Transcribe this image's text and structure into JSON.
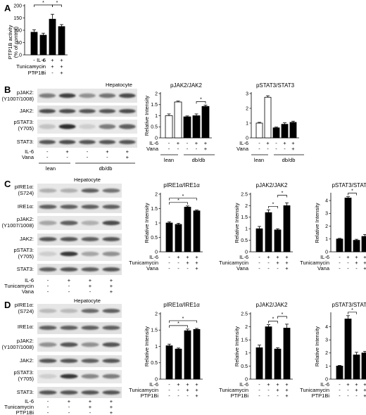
{
  "panels": {
    "A": {
      "letter": "A",
      "ylabel_line1": "PTP1B activity",
      "ylabel_line2": "(% of control)",
      "yticks": [
        "0",
        "50",
        "100",
        "150",
        "200"
      ],
      "rows": [
        {
          "label": "IL-6",
          "signs": [
            "-",
            "+",
            "+",
            "+"
          ]
        },
        {
          "label": "Tunicamycin",
          "signs": [
            "-",
            "-",
            "+",
            "+"
          ]
        },
        {
          "label": "PTP1Bi",
          "signs": [
            "-",
            "-",
            "-",
            "+"
          ]
        }
      ],
      "stars": [
        "*",
        "*"
      ]
    },
    "B": {
      "letter": "B",
      "cell": "Hepatocyte",
      "blot_labels": [
        "pJAK2:",
        "(Y1007/1008)",
        "JAK2:",
        "pSTAT3:",
        "(Y705)",
        "STAT3:"
      ],
      "treat_rows": [
        {
          "label": "IL-6",
          "signs": [
            "-",
            "+",
            "-",
            "+",
            "+"
          ]
        },
        {
          "label": "Vana",
          "signs": [
            "-",
            "-",
            "-",
            "-",
            "+"
          ]
        }
      ],
      "groups": [
        "lean",
        "db/db"
      ],
      "chart_rows": [
        {
          "label": "IL-6",
          "signs": [
            "-",
            "+",
            "-",
            "+",
            "+"
          ]
        },
        {
          "label": "Vana",
          "signs": [
            "-",
            "-",
            "-",
            "-",
            "+"
          ]
        }
      ]
    },
    "C": {
      "letter": "C",
      "cell": "Hepatocyte",
      "blot_labels": [
        "pIRE1α:",
        "(S724)",
        "IRE1α:",
        "pJAK2:",
        "(Y1007/1008)",
        "JAK2:",
        "pSTAT3:",
        "(Y705)",
        "STAT3:"
      ],
      "treat_rows": [
        {
          "label": "IL-6",
          "signs": [
            "-",
            "+",
            "+",
            "+"
          ]
        },
        {
          "label": "Tunicamycin",
          "signs": [
            "-",
            "-",
            "+",
            "+"
          ]
        },
        {
          "label": "Vana",
          "signs": [
            "-",
            "-",
            "-",
            "+"
          ]
        }
      ]
    },
    "D": {
      "letter": "D",
      "cell": "Hepatocyte",
      "blot_labels": [
        "pIRE1α:",
        "(S724)",
        "IRE1α:",
        "pJAK2:",
        "(Y1007/1008)",
        "JAK2:",
        "pSTAT3:",
        "(Y705)",
        "STAT3:"
      ],
      "treat_rows": [
        {
          "label": "IL-6",
          "signs": [
            "-",
            "+",
            "+",
            "+"
          ]
        },
        {
          "label": "Tunicamycin",
          "signs": [
            "-",
            "-",
            "+",
            "+"
          ]
        },
        {
          "label": "PTP1Bi",
          "signs": [
            "-",
            "-",
            "-",
            "+"
          ]
        }
      ]
    }
  },
  "chart_data": [
    {
      "id": "A",
      "type": "bar",
      "title": "",
      "ylabel": "PTP1B activity (% of control)",
      "ylim": [
        0,
        200
      ],
      "yticks": [
        0,
        50,
        100,
        150,
        200
      ],
      "categories": [
        "1",
        "2",
        "3",
        "4"
      ],
      "values": [
        92,
        80,
        145,
        115
      ],
      "errors": [
        10,
        8,
        20,
        8
      ],
      "fills": [
        "#000",
        "#000",
        "#000",
        "#000"
      ],
      "sig": [
        [
          0,
          2
        ],
        [
          2,
          3
        ]
      ]
    },
    {
      "id": "B1",
      "type": "bar",
      "title": "pJAK2/JAK2",
      "ylabel": "Relative Intensity",
      "ylim": [
        0,
        2
      ],
      "yticks": [
        0,
        0.5,
        1,
        1.5,
        2
      ],
      "ytick_labels": [
        "0",
        "0.5",
        "1",
        "1.5",
        "2"
      ],
      "categories": [
        "1",
        "2",
        "3",
        "4",
        "5"
      ],
      "values": [
        1.0,
        1.62,
        0.95,
        1.0,
        1.42
      ],
      "errors": [
        0.08,
        0.04,
        0.04,
        0.08,
        0.06
      ],
      "fills": [
        "#fff",
        "#fff",
        "#000",
        "#000",
        "#000"
      ],
      "sig": [
        [
          3,
          4
        ]
      ],
      "groups": [
        "lean",
        "db/db"
      ]
    },
    {
      "id": "B2",
      "type": "bar",
      "title": "pSTAT3/STAT3",
      "ylabel": "",
      "ylim": [
        0,
        3
      ],
      "yticks": [
        0,
        1,
        2,
        3
      ],
      "ytick_labels": [
        "0",
        "1",
        "2",
        "3"
      ],
      "categories": [
        "1",
        "2",
        "3",
        "4",
        "5"
      ],
      "values": [
        1.0,
        2.75,
        0.68,
        0.92,
        1.05
      ],
      "errors": [
        0.05,
        0.1,
        0.05,
        0.1,
        0.08
      ],
      "fills": [
        "#fff",
        "#fff",
        "#000",
        "#000",
        "#000"
      ],
      "sig": [],
      "groups": [
        "lean",
        "db/db"
      ]
    },
    {
      "id": "C1",
      "type": "bar",
      "title": "pIRE1α/IRE1α",
      "ylabel": "Relative Intensity",
      "ylim": [
        0,
        2
      ],
      "yticks": [
        0,
        0.5,
        1,
        1.5,
        2
      ],
      "ytick_labels": [
        "0",
        "0.5",
        "1",
        "1.5",
        "2"
      ],
      "categories": [
        "1",
        "2",
        "3",
        "4"
      ],
      "values": [
        1.0,
        0.95,
        1.55,
        1.42
      ],
      "errors": [
        0.04,
        0.04,
        0.04,
        0.03
      ],
      "fills": [
        "#000",
        "#000",
        "#000",
        "#000"
      ],
      "sig": [
        [
          0,
          2
        ],
        [
          0,
          3
        ]
      ]
    },
    {
      "id": "C2",
      "type": "bar",
      "title": "pJAK2/JAK2",
      "ylabel": "Relative Intensity",
      "ylim": [
        0,
        2.5
      ],
      "yticks": [
        0,
        0.5,
        1,
        1.5,
        2,
        2.5
      ],
      "ytick_labels": [
        "0",
        "0.5",
        "1",
        "1.5",
        "2",
        "2.5"
      ],
      "categories": [
        "1",
        "2",
        "3",
        "4"
      ],
      "values": [
        1.0,
        1.7,
        0.95,
        2.0
      ],
      "errors": [
        0.1,
        0.12,
        0.05,
        0.12
      ],
      "fills": [
        "#000",
        "#000",
        "#000",
        "#000"
      ],
      "sig": [
        [
          1,
          2
        ],
        [
          2,
          3
        ]
      ]
    },
    {
      "id": "C3",
      "type": "bar",
      "title": "pSTAT3/STAT3",
      "ylabel": "Relative Intensity",
      "ylim": [
        0,
        4.5
      ],
      "yticks": [
        0,
        1,
        2,
        3,
        4
      ],
      "ytick_labels": [
        "0",
        "1",
        "2",
        "3",
        "4"
      ],
      "categories": [
        "1",
        "2",
        "3",
        "4"
      ],
      "values": [
        1.0,
        4.2,
        0.9,
        1.2
      ],
      "errors": [
        0.05,
        0.1,
        0.08,
        0.15
      ],
      "fills": [
        "#000",
        "#000",
        "#000",
        "#000"
      ],
      "sig": [
        [
          1,
          2
        ]
      ]
    },
    {
      "id": "D1",
      "type": "bar",
      "title": "pIRE1α/IRE1α",
      "ylabel": "Relative Intensity",
      "ylim": [
        0,
        2
      ],
      "yticks": [
        0,
        0.5,
        1,
        1.5,
        2
      ],
      "ytick_labels": [
        "0",
        "0.5",
        "1",
        "1.5",
        "2"
      ],
      "categories": [
        "1",
        "2",
        "3",
        "4"
      ],
      "values": [
        1.02,
        0.92,
        1.48,
        1.52
      ],
      "errors": [
        0.05,
        0.03,
        0.05,
        0.03
      ],
      "fills": [
        "#000",
        "#000",
        "#000",
        "#000"
      ],
      "sig": [
        [
          0,
          2
        ],
        [
          0,
          3
        ]
      ]
    },
    {
      "id": "D2",
      "type": "bar",
      "title": "pJAK2/JAK2",
      "ylabel": "Relative Intensity",
      "ylim": [
        0,
        2.5
      ],
      "yticks": [
        0,
        0.5,
        1,
        1.5,
        2,
        2.5
      ],
      "ytick_labels": [
        "0",
        "0.5",
        "1",
        "1.5",
        "2",
        "2.5"
      ],
      "categories": [
        "1",
        "2",
        "3",
        "4"
      ],
      "values": [
        1.2,
        2.0,
        1.15,
        1.95
      ],
      "errors": [
        0.1,
        0.08,
        0.05,
        0.15
      ],
      "fills": [
        "#000",
        "#000",
        "#000",
        "#000"
      ],
      "sig": [
        [
          1,
          2
        ],
        [
          2,
          3
        ]
      ]
    },
    {
      "id": "D3",
      "type": "bar",
      "title": "pSTAT3/STAT3",
      "ylabel": "Relative Intensity",
      "ylim": [
        0,
        5
      ],
      "yticks": [
        0,
        1,
        2,
        3,
        4
      ],
      "ytick_labels": [
        "0",
        "1",
        "2",
        "3",
        "4"
      ],
      "categories": [
        "1",
        "2",
        "3",
        "4"
      ],
      "values": [
        1.0,
        4.6,
        1.85,
        2.0
      ],
      "errors": [
        0.05,
        0.25,
        0.2,
        0.12
      ],
      "fills": [
        "#000",
        "#000",
        "#000",
        "#000"
      ],
      "sig": [
        [
          1,
          2
        ]
      ]
    }
  ]
}
